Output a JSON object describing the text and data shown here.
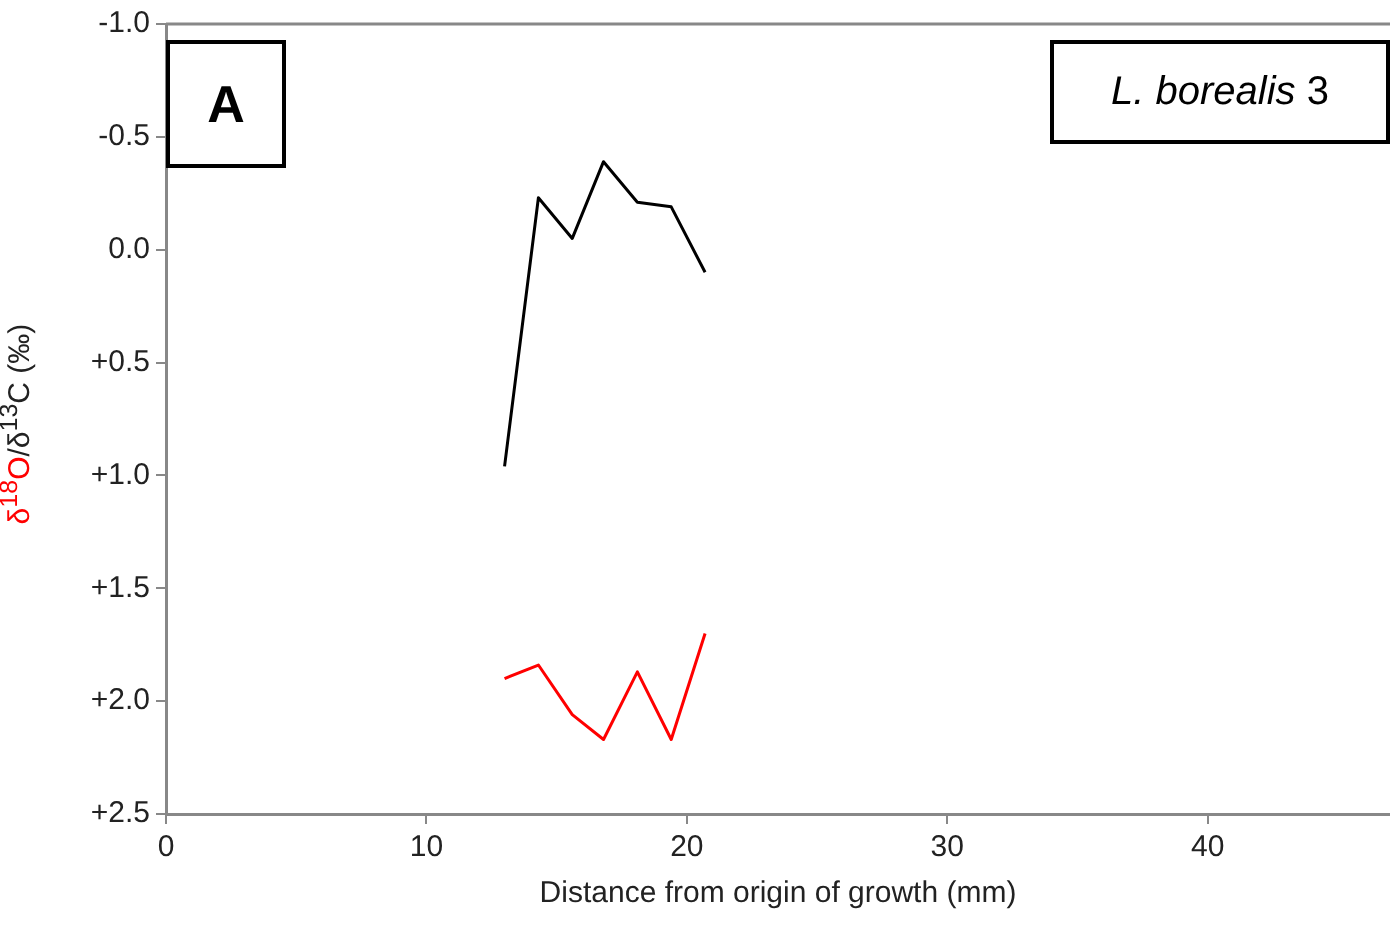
{
  "chart_data": {
    "type": "line",
    "xlabel": "Distance from origin of growth (mm)",
    "ylabel": "δ$^{18}$O/δ$^{13}$C (‰)",
    "annotations": [
      "A",
      "L. borealis 3"
    ],
    "xlim": [
      0,
      47
    ],
    "xticks": [
      0,
      10,
      20,
      30,
      40
    ],
    "ylim": [
      2.5,
      -1.0
    ],
    "yticks": [
      {
        "value": -1.0,
        "label": "-1.0"
      },
      {
        "value": -0.5,
        "label": "-0.5"
      },
      {
        "value": 0,
        "label": "0.0"
      },
      {
        "value": 0.5,
        "label": "+0.5"
      },
      {
        "value": 1.0,
        "label": "+1.0"
      },
      {
        "value": 1.5,
        "label": "+1.5"
      },
      {
        "value": 2.0,
        "label": "+2.0"
      },
      {
        "value": 2.5,
        "label": "+2.5"
      }
    ],
    "grid": false,
    "legend": false,
    "marker": "none",
    "x": [
      13.0,
      14.3,
      15.6,
      16.8,
      18.1,
      19.4,
      20.7
    ],
    "series": [
      {
        "color": "#000000",
        "values": [
          0.96,
          -0.23,
          -0.05,
          -0.39,
          -0.21,
          -0.19,
          0.1
        ]
      },
      {
        "color": "#ff0000",
        "values": [
          1.9,
          1.84,
          2.06,
          2.17,
          1.87,
          2.17,
          1.7
        ]
      }
    ]
  }
}
